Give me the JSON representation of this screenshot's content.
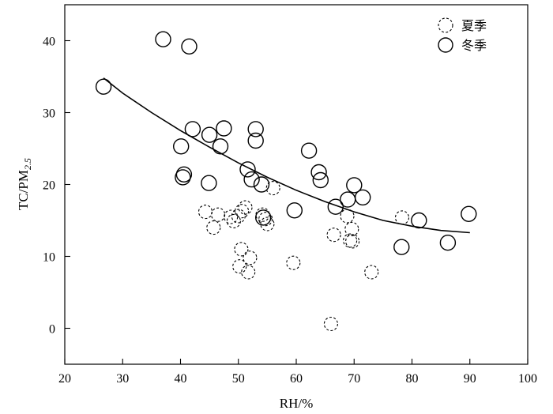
{
  "chart_data": {
    "type": "scatter",
    "xlabel": "RH/%",
    "ylabel_main": "TC/PM",
    "ylabel_sub": "2.5",
    "xlim": [
      20,
      100
    ],
    "ylim": [
      -5,
      45
    ],
    "xticks": [
      20,
      30,
      40,
      50,
      60,
      70,
      80,
      90,
      100
    ],
    "yticks": [
      0,
      10,
      20,
      30,
      40
    ],
    "grid": false,
    "legend_position": "top-right",
    "series": [
      {
        "name": "夏季",
        "style": "dashed-circle",
        "points": [
          [
            44.3,
            16.2
          ],
          [
            45.7,
            14.0
          ],
          [
            46.5,
            15.8
          ],
          [
            48.7,
            15.5
          ],
          [
            49.2,
            14.9
          ],
          [
            50.0,
            15.6
          ],
          [
            50.6,
            16.3
          ],
          [
            51.2,
            16.8
          ],
          [
            54.2,
            15.8
          ],
          [
            54.7,
            15.2
          ],
          [
            55.0,
            14.5
          ],
          [
            56.0,
            19.5
          ],
          [
            50.5,
            11.0
          ],
          [
            52.0,
            9.8
          ],
          [
            50.2,
            8.6
          ],
          [
            51.7,
            7.8
          ],
          [
            59.5,
            9.1
          ],
          [
            66.0,
            0.6
          ],
          [
            66.5,
            13.0
          ],
          [
            68.8,
            15.6
          ],
          [
            69.3,
            12.2
          ],
          [
            69.7,
            12.1
          ],
          [
            69.6,
            13.8
          ],
          [
            73.0,
            7.8
          ],
          [
            78.3,
            15.4
          ]
        ]
      },
      {
        "name": "冬季",
        "style": "solid-circle",
        "points": [
          [
            26.7,
            33.6
          ],
          [
            37.0,
            40.2
          ],
          [
            41.5,
            39.2
          ],
          [
            42.1,
            27.7
          ],
          [
            40.1,
            25.3
          ],
          [
            40.6,
            21.4
          ],
          [
            40.4,
            21.0
          ],
          [
            44.9,
            20.2
          ],
          [
            45.0,
            26.9
          ],
          [
            46.9,
            25.3
          ],
          [
            47.5,
            27.8
          ],
          [
            51.6,
            22.1
          ],
          [
            52.3,
            20.7
          ],
          [
            53.0,
            27.7
          ],
          [
            53.0,
            26.1
          ],
          [
            54.0,
            20.0
          ],
          [
            54.3,
            15.4
          ],
          [
            59.7,
            16.4
          ],
          [
            62.2,
            24.7
          ],
          [
            63.9,
            21.7
          ],
          [
            64.2,
            20.6
          ],
          [
            66.8,
            16.9
          ],
          [
            68.9,
            17.9
          ],
          [
            70.0,
            19.9
          ],
          [
            71.5,
            18.2
          ],
          [
            78.2,
            11.3
          ],
          [
            81.2,
            15.0
          ],
          [
            86.2,
            11.9
          ],
          [
            89.8,
            15.9
          ]
        ]
      }
    ],
    "fit_curve": {
      "style": "solid-line",
      "points": [
        [
          26.7,
          34.8
        ],
        [
          30,
          32.7
        ],
        [
          35,
          30.0
        ],
        [
          40,
          27.5
        ],
        [
          45,
          25.2
        ],
        [
          50,
          23.0
        ],
        [
          55,
          21.0
        ],
        [
          60,
          19.2
        ],
        [
          65,
          17.6
        ],
        [
          70,
          16.2
        ],
        [
          75,
          15.0
        ],
        [
          80,
          14.2
        ],
        [
          85,
          13.6
        ],
        [
          90,
          13.3
        ]
      ]
    }
  }
}
